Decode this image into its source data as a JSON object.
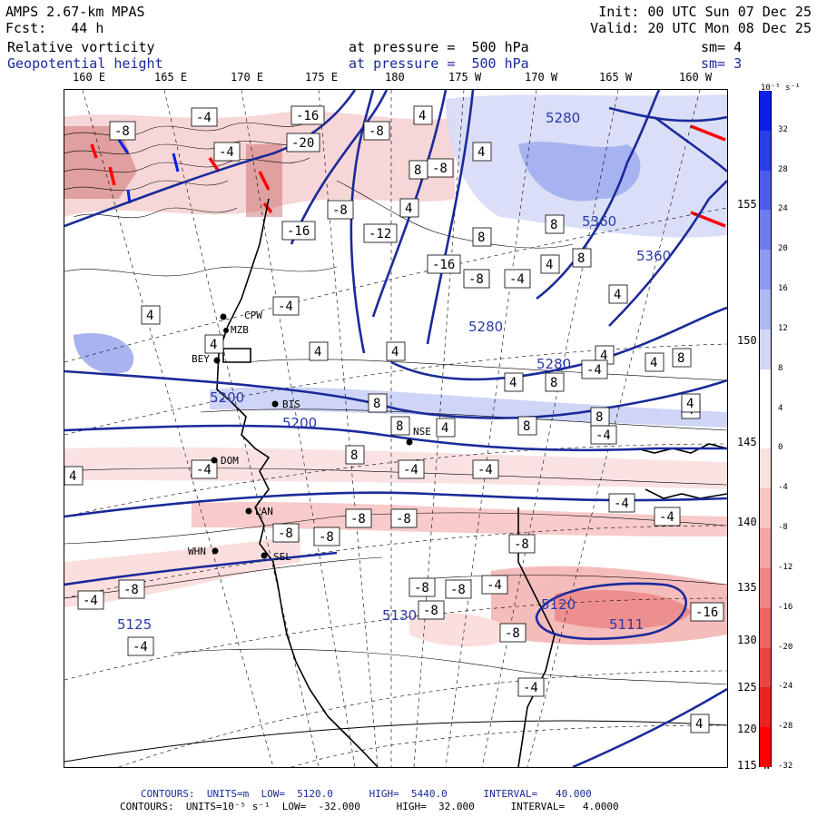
{
  "header": {
    "model": "AMPS 2.67-km MPAS",
    "forecast": "Fcst:   44 h",
    "init": "Init: 00 UTC Sun 07 Dec 25",
    "valid": "Valid: 20 UTC Mon 08 Dec 25",
    "field1_name": "Relative vorticity",
    "field1_level": "at pressure =  500 hPa",
    "field1_sm": "sm= 4",
    "field2_name": "Geopotential height",
    "field2_level": "at pressure =  500 hPa",
    "field2_sm": "sm= 3"
  },
  "longitudes": [
    "160 E",
    "165 E",
    "170 E",
    "175 E",
    "180",
    "175 W",
    "170 W",
    "165 W",
    "160 W"
  ],
  "latitudes": [
    "155 W",
    "150 W",
    "145 W",
    "140 W",
    "135 W",
    "130 W",
    "125 W",
    "120 W",
    "115 W"
  ],
  "colorbar": {
    "unit": "10⁻⁵ s⁻¹",
    "ticks": [
      "32",
      "28",
      "24",
      "20",
      "16",
      "12",
      "8",
      "4",
      "0",
      "-4",
      "-8",
      "-12",
      "-16",
      "-20",
      "-24",
      "-28",
      "-32"
    ],
    "colors": [
      "#0a1ee6",
      "#2a3ee8",
      "#4a5ce9",
      "#6c7cec",
      "#8e9af0",
      "#b0b8f4",
      "#d2d7f8",
      "#ffffff",
      "#ffffff",
      "#fbe0e0",
      "#f8c4c4",
      "#f4a4a4",
      "#f08484",
      "#ec6464",
      "#e84444",
      "#e82222",
      "#ff0000"
    ]
  },
  "stations": [
    "CPW",
    "MZB",
    "BEY",
    "BIS",
    "NSE",
    "DOM",
    "LAN",
    "WHN",
    "SEL"
  ],
  "height_labels": [
    "5280",
    "5280",
    "5200",
    "5200",
    "5130",
    "5125",
    "5360",
    "5360",
    "5111",
    "5120",
    "5280"
  ],
  "vorticity_labels": [
    "-8",
    "-4",
    "-16",
    "-20",
    "-8",
    "4",
    "4",
    "8",
    "-8",
    "-4",
    "-16",
    "-8",
    "4",
    "8",
    "-12",
    "-16",
    "-8",
    "-4",
    "4",
    "8",
    "8",
    "4",
    "-4",
    "4",
    "4",
    "4",
    "4",
    "4",
    "4",
    "8",
    "4",
    "4",
    "8",
    "8",
    "8",
    "4",
    "8",
    "8",
    "8",
    "-4",
    "-4",
    "4",
    "-4",
    "-4",
    "-8",
    "-8",
    "-8",
    "-8",
    "-8",
    "-4",
    "-4",
    "-8",
    "-8",
    "-4",
    "-4",
    "-8",
    "-4",
    "-8",
    "-8",
    "-16",
    "-4",
    "4",
    "4",
    "-4"
  ],
  "footer": {
    "line1": "CONTOURS:  UNITS=m  LOW=  5120.0      HIGH=  5440.0      INTERVAL=   40.000",
    "line2": "CONTOURS:  UNITS=10⁻⁵ s⁻¹  LOW=  -32.000      HIGH=  32.000      INTERVAL=   4.0000"
  }
}
